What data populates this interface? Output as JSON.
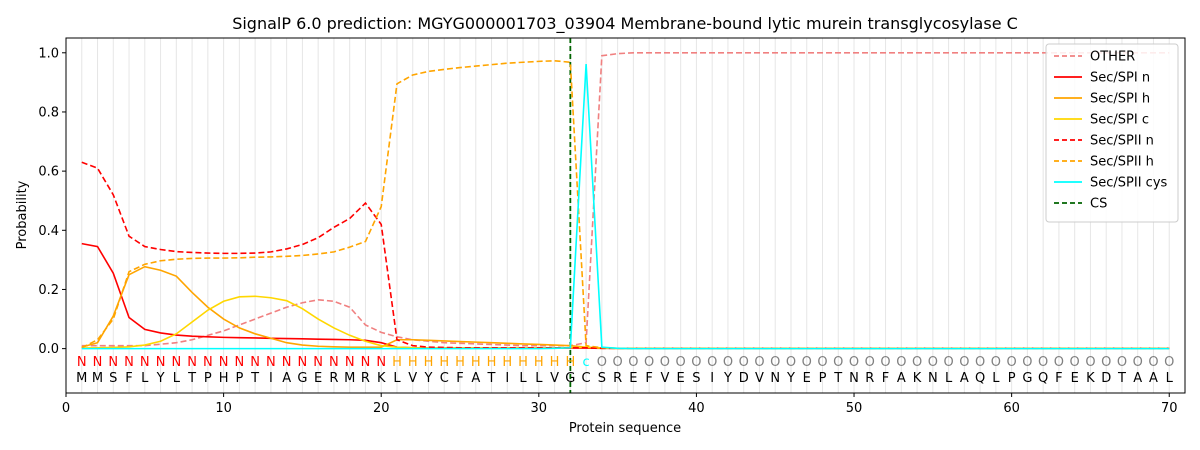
{
  "chart_data": {
    "type": "line",
    "title": "SignalP 6.0 prediction: MGYG000001703_03904 Membrane-bound lytic murein transglycosylase C",
    "xlabel": "Protein sequence",
    "ylabel": "Probability",
    "xlim": [
      0,
      71
    ],
    "ylim": [
      -0.15,
      1.05
    ],
    "xticks": [
      0,
      10,
      20,
      30,
      40,
      50,
      60,
      70
    ],
    "yticks": [
      0.0,
      0.2,
      0.4,
      0.6,
      0.8,
      1.0
    ],
    "x": [
      1,
      2,
      3,
      4,
      5,
      6,
      7,
      8,
      9,
      10,
      11,
      12,
      13,
      14,
      15,
      16,
      17,
      18,
      19,
      20,
      21,
      22,
      23,
      24,
      25,
      26,
      27,
      28,
      29,
      30,
      31,
      32,
      33,
      34,
      35,
      36,
      37,
      38,
      39,
      40,
      41,
      42,
      43,
      44,
      45,
      46,
      47,
      48,
      49,
      50,
      51,
      52,
      53,
      54,
      55,
      56,
      57,
      58,
      59,
      60,
      61,
      62,
      63,
      64,
      65,
      66,
      67,
      68,
      69,
      70
    ],
    "sequence": [
      "M",
      "M",
      "S",
      "F",
      "L",
      "Y",
      "L",
      "T",
      "P",
      "H",
      "P",
      "T",
      "I",
      "A",
      "G",
      "E",
      "R",
      "M",
      "R",
      "K",
      "L",
      "V",
      "Y",
      "C",
      "F",
      "A",
      "T",
      "I",
      "L",
      "L",
      "V",
      "G",
      "C",
      "S",
      "R",
      "E",
      "F",
      "V",
      "E",
      "S",
      "I",
      "Y",
      "D",
      "V",
      "N",
      "Y",
      "E",
      "P",
      "T",
      "N",
      "R",
      "F",
      "A",
      "K",
      "N",
      "L",
      "A",
      "Q",
      "L",
      "P",
      "G",
      "Q",
      "F",
      "E",
      "K",
      "D",
      "T",
      "A",
      "A",
      "L"
    ],
    "labels": [
      "N",
      "N",
      "N",
      "N",
      "N",
      "N",
      "N",
      "N",
      "N",
      "N",
      "N",
      "N",
      "N",
      "N",
      "N",
      "N",
      "N",
      "N",
      "N",
      "N",
      "H",
      "H",
      "H",
      "H",
      "H",
      "H",
      "H",
      "H",
      "H",
      "H",
      "H",
      "H",
      "C",
      "O",
      "O",
      "O",
      "O",
      "O",
      "O",
      "O",
      "O",
      "O",
      "O",
      "O",
      "O",
      "O",
      "O",
      "O",
      "O",
      "O",
      "O",
      "O",
      "O",
      "O",
      "O",
      "O",
      "O",
      "O",
      "O",
      "O",
      "O",
      "O",
      "O",
      "O",
      "O",
      "O",
      "O",
      "O",
      "O",
      "O"
    ],
    "label_colors": {
      "N": "#ff0000",
      "H": "#ffa500",
      "C": "#00ffff",
      "O": "#808080"
    },
    "cs_position": 32,
    "series": [
      {
        "name": "OTHER",
        "color": "#f08080",
        "dash": "dashed",
        "values": [
          0.01,
          0.01,
          0.01,
          0.01,
          0.01,
          0.015,
          0.02,
          0.03,
          0.045,
          0.06,
          0.08,
          0.1,
          0.12,
          0.14,
          0.155,
          0.165,
          0.16,
          0.14,
          0.08,
          0.055,
          0.04,
          0.03,
          0.025,
          0.02,
          0.018,
          0.016,
          0.014,
          0.012,
          0.01,
          0.01,
          0.01,
          0.01,
          0.02,
          0.99,
          0.997,
          1.0,
          1.0,
          1.0,
          1.0,
          1.0,
          1.0,
          1.0,
          1.0,
          1.0,
          1.0,
          1.0,
          1.0,
          1.0,
          1.0,
          1.0,
          1.0,
          1.0,
          1.0,
          1.0,
          1.0,
          1.0,
          1.0,
          1.0,
          1.0,
          1.0,
          1.0,
          1.0,
          1.0,
          1.0,
          1.0,
          1.0,
          1.0,
          1.0,
          1.0,
          1.0
        ]
      },
      {
        "name": "Sec/SPI n",
        "color": "#ff0000",
        "dash": "solid",
        "values": [
          0.355,
          0.345,
          0.255,
          0.105,
          0.065,
          0.053,
          0.046,
          0.042,
          0.04,
          0.038,
          0.037,
          0.036,
          0.035,
          0.034,
          0.033,
          0.032,
          0.031,
          0.03,
          0.028,
          0.02,
          0.005,
          0.003,
          0.002,
          0.002,
          0.002,
          0.002,
          0.002,
          0.002,
          0.002,
          0.002,
          0.002,
          0.002,
          0.002,
          0.001,
          0.001,
          0.001,
          0.001,
          0.001,
          0.001,
          0.001,
          0.001,
          0.001,
          0.001,
          0.001,
          0.001,
          0.001,
          0.001,
          0.001,
          0.001,
          0.001,
          0.001,
          0.001,
          0.001,
          0.001,
          0.001,
          0.001,
          0.001,
          0.001,
          0.001,
          0.001,
          0.001,
          0.001,
          0.001,
          0.001,
          0.001,
          0.001,
          0.001,
          0.001,
          0.001,
          0.001
        ]
      },
      {
        "name": "Sec/SPI h",
        "color": "#ffa500",
        "dash": "solid",
        "values": [
          0.005,
          0.02,
          0.11,
          0.25,
          0.277,
          0.265,
          0.245,
          0.19,
          0.14,
          0.1,
          0.07,
          0.05,
          0.035,
          0.02,
          0.012,
          0.008,
          0.006,
          0.005,
          0.005,
          0.005,
          0.03,
          0.03,
          0.028,
          0.026,
          0.024,
          0.022,
          0.02,
          0.018,
          0.016,
          0.014,
          0.012,
          0.01,
          0.005,
          0.002,
          0.001,
          0.001,
          0.001,
          0.001,
          0.001,
          0.001,
          0.001,
          0.001,
          0.001,
          0.001,
          0.001,
          0.001,
          0.001,
          0.001,
          0.001,
          0.001,
          0.001,
          0.001,
          0.001,
          0.001,
          0.001,
          0.001,
          0.001,
          0.001,
          0.001,
          0.001,
          0.001,
          0.001,
          0.001,
          0.001,
          0.001,
          0.001,
          0.001,
          0.001,
          0.001,
          0.001
        ]
      },
      {
        "name": "Sec/SPI c",
        "color": "#ffd700",
        "dash": "solid",
        "values": [
          0.002,
          0.003,
          0.004,
          0.006,
          0.012,
          0.025,
          0.05,
          0.09,
          0.13,
          0.16,
          0.175,
          0.177,
          0.172,
          0.162,
          0.135,
          0.1,
          0.07,
          0.045,
          0.025,
          0.01,
          0.005,
          0.003,
          0.002,
          0.002,
          0.002,
          0.002,
          0.002,
          0.002,
          0.002,
          0.002,
          0.002,
          0.003,
          0.005,
          0.002,
          0.001,
          0.001,
          0.001,
          0.001,
          0.001,
          0.001,
          0.001,
          0.001,
          0.001,
          0.001,
          0.001,
          0.001,
          0.001,
          0.001,
          0.001,
          0.001,
          0.001,
          0.001,
          0.001,
          0.001,
          0.001,
          0.001,
          0.001,
          0.001,
          0.001,
          0.001,
          0.001,
          0.001,
          0.001,
          0.001,
          0.001,
          0.001,
          0.001,
          0.001,
          0.001,
          0.001
        ]
      },
      {
        "name": "Sec/SPII n",
        "color": "#ff0000",
        "dash": "dashed",
        "values": [
          0.63,
          0.61,
          0.52,
          0.38,
          0.345,
          0.335,
          0.328,
          0.325,
          0.323,
          0.322,
          0.322,
          0.323,
          0.327,
          0.337,
          0.352,
          0.375,
          0.41,
          0.44,
          0.492,
          0.42,
          0.03,
          0.01,
          0.005,
          0.004,
          0.003,
          0.003,
          0.003,
          0.003,
          0.003,
          0.003,
          0.003,
          0.003,
          0.003,
          0.001,
          0.001,
          0.001,
          0.001,
          0.001,
          0.001,
          0.001,
          0.001,
          0.001,
          0.001,
          0.001,
          0.001,
          0.001,
          0.001,
          0.001,
          0.001,
          0.001,
          0.001,
          0.001,
          0.001,
          0.001,
          0.001,
          0.001,
          0.001,
          0.001,
          0.001,
          0.001,
          0.001,
          0.001,
          0.001,
          0.001,
          0.001,
          0.001,
          0.001,
          0.001,
          0.001,
          0.001
        ]
      },
      {
        "name": "Sec/SPII h",
        "color": "#ffa500",
        "dash": "dashed",
        "values": [
          0.003,
          0.03,
          0.1,
          0.26,
          0.285,
          0.297,
          0.302,
          0.305,
          0.306,
          0.306,
          0.307,
          0.309,
          0.31,
          0.312,
          0.315,
          0.32,
          0.327,
          0.343,
          0.362,
          0.48,
          0.895,
          0.925,
          0.937,
          0.944,
          0.95,
          0.955,
          0.96,
          0.965,
          0.968,
          0.971,
          0.973,
          0.968,
          0.01,
          0.003,
          0.001,
          0.001,
          0.001,
          0.001,
          0.001,
          0.001,
          0.001,
          0.001,
          0.001,
          0.001,
          0.001,
          0.001,
          0.001,
          0.001,
          0.001,
          0.001,
          0.001,
          0.001,
          0.001,
          0.001,
          0.001,
          0.001,
          0.001,
          0.001,
          0.001,
          0.001,
          0.001,
          0.001,
          0.001,
          0.001,
          0.001,
          0.001,
          0.001,
          0.001,
          0.001,
          0.001
        ]
      },
      {
        "name": "Sec/SPII cys",
        "color": "#00ffff",
        "dash": "solid",
        "values": [
          0.0,
          0.0,
          0.0,
          0.0,
          0.0,
          0.0,
          0.0,
          0.0,
          0.0,
          0.0,
          0.0,
          0.0,
          0.0,
          0.0,
          0.0,
          0.0,
          0.0,
          0.0,
          0.0,
          0.0,
          0.0,
          0.0,
          0.0,
          0.0,
          0.0,
          0.0,
          0.0,
          0.0,
          0.0,
          0.0,
          0.001,
          0.003,
          0.962,
          0.005,
          0.001,
          0.0,
          0.0,
          0.0,
          0.0,
          0.0,
          0.0,
          0.0,
          0.0,
          0.0,
          0.0,
          0.0,
          0.0,
          0.0,
          0.0,
          0.0,
          0.0,
          0.0,
          0.0,
          0.0,
          0.0,
          0.0,
          0.0,
          0.0,
          0.0,
          0.0,
          0.0,
          0.0,
          0.0,
          0.0,
          0.0,
          0.0,
          0.0,
          0.0,
          0.0,
          0.0
        ]
      }
    ],
    "cs_line": {
      "name": "CS",
      "color": "#006400",
      "dash": "dashed"
    },
    "legend_position": "upper right",
    "grid": "vertical lines at each residue"
  }
}
